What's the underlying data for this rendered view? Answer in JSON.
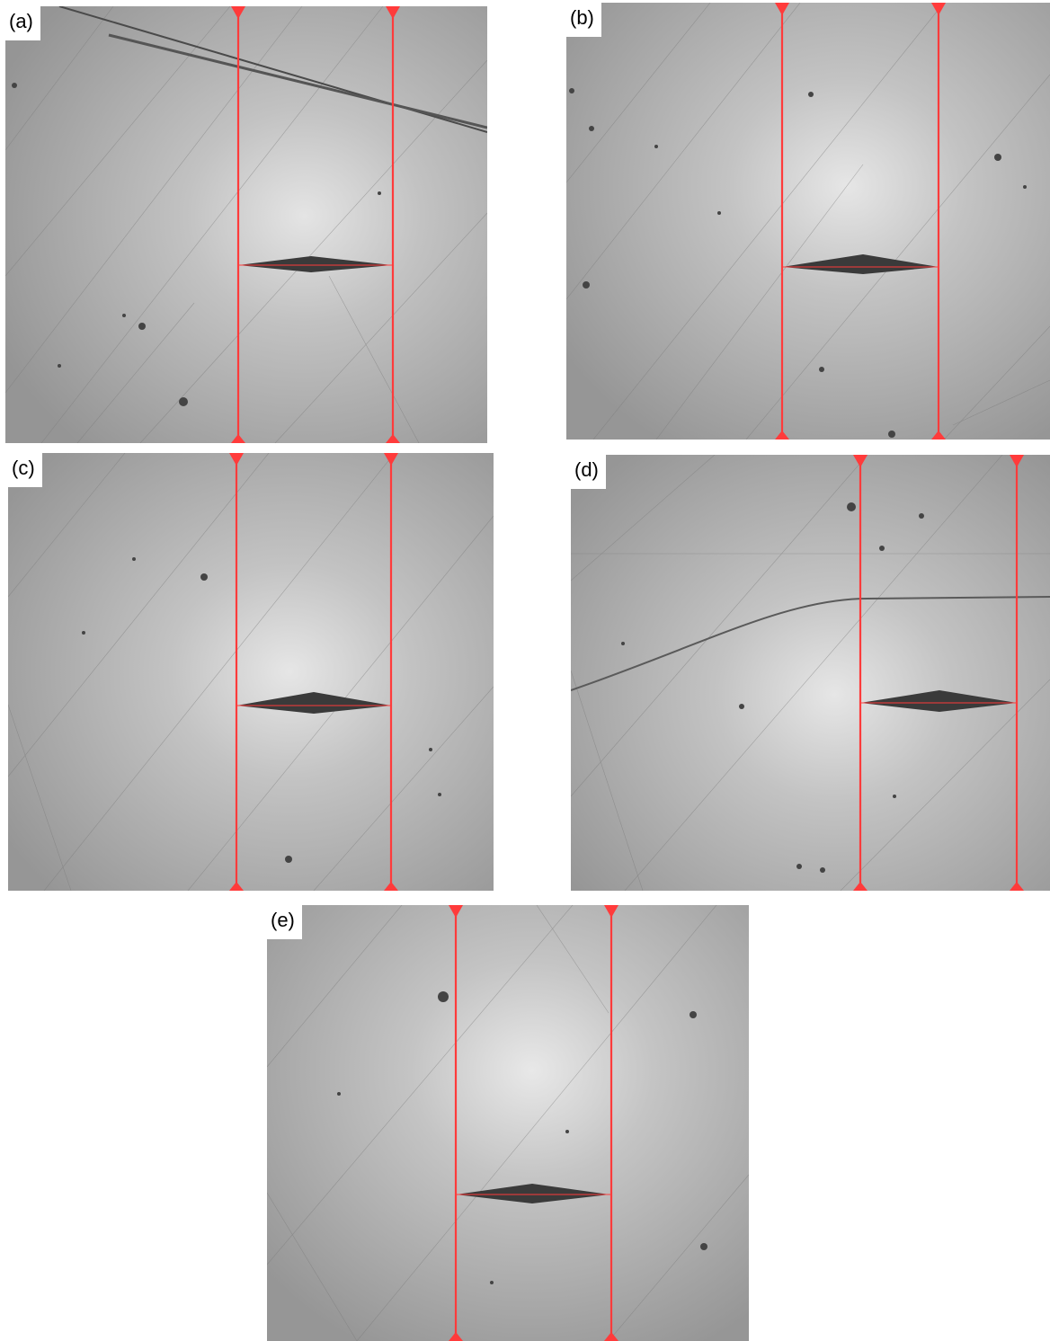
{
  "figure": {
    "panels": [
      {
        "id": "a",
        "label": "(a)"
      },
      {
        "id": "b",
        "label": "(b)"
      },
      {
        "id": "c",
        "label": "(c)"
      },
      {
        "id": "d",
        "label": "(d)"
      },
      {
        "id": "e",
        "label": "(e)"
      }
    ]
  },
  "colors": {
    "background_gray": "#9c9c9c",
    "highlight": "#e6e6e6",
    "measurement_line": "#ff3b3b",
    "indent_dark": "#3a3a3a"
  }
}
